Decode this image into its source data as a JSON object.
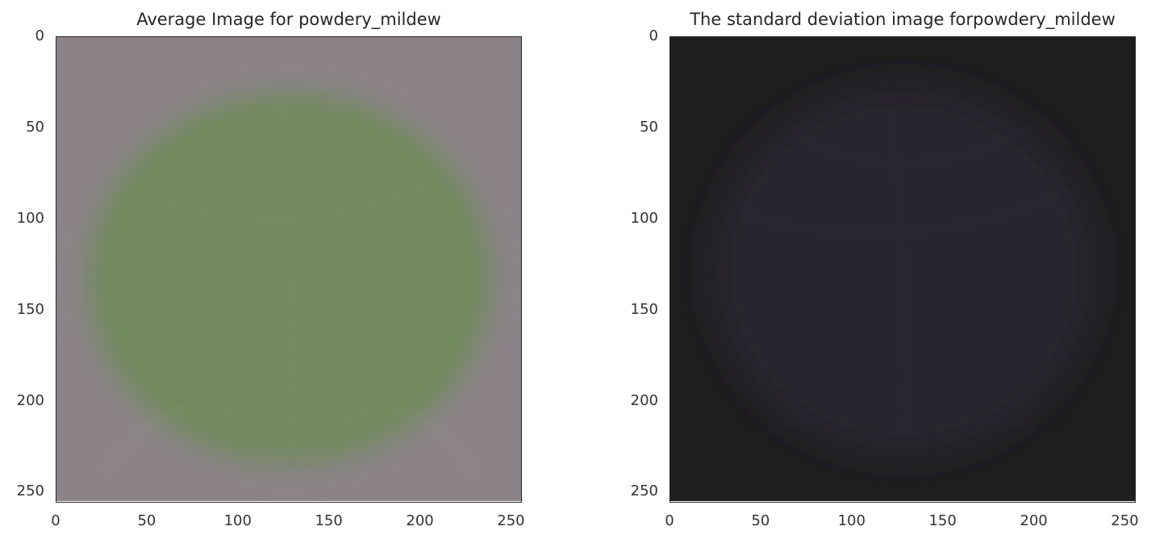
{
  "chart_data": [
    {
      "type": "image",
      "title": "Average Image for powdery_mildew",
      "xlabel": "",
      "ylabel": "",
      "xlim": [
        0,
        256
      ],
      "ylim": [
        256,
        0
      ],
      "xticks": [
        0,
        50,
        100,
        150,
        200,
        250
      ],
      "yticks": [
        0,
        50,
        100,
        150,
        200,
        250
      ],
      "image": {
        "background_color": "#8c8389",
        "subject_color": "#6f8a5c",
        "subject": "blurred green leaf"
      },
      "grid": false
    },
    {
      "type": "image",
      "title": "The standard deviation image forpowdery_mildew",
      "xlabel": "",
      "ylabel": "",
      "xlim": [
        0,
        256
      ],
      "ylim": [
        256,
        0
      ],
      "xticks": [
        0,
        50,
        100,
        150,
        200,
        250
      ],
      "yticks": [
        0,
        50,
        100,
        150,
        200,
        250
      ],
      "image": {
        "background_color": "#1e1e1f",
        "subject_color": "#2a2733",
        "subject": "dark variance map"
      },
      "grid": false
    }
  ]
}
